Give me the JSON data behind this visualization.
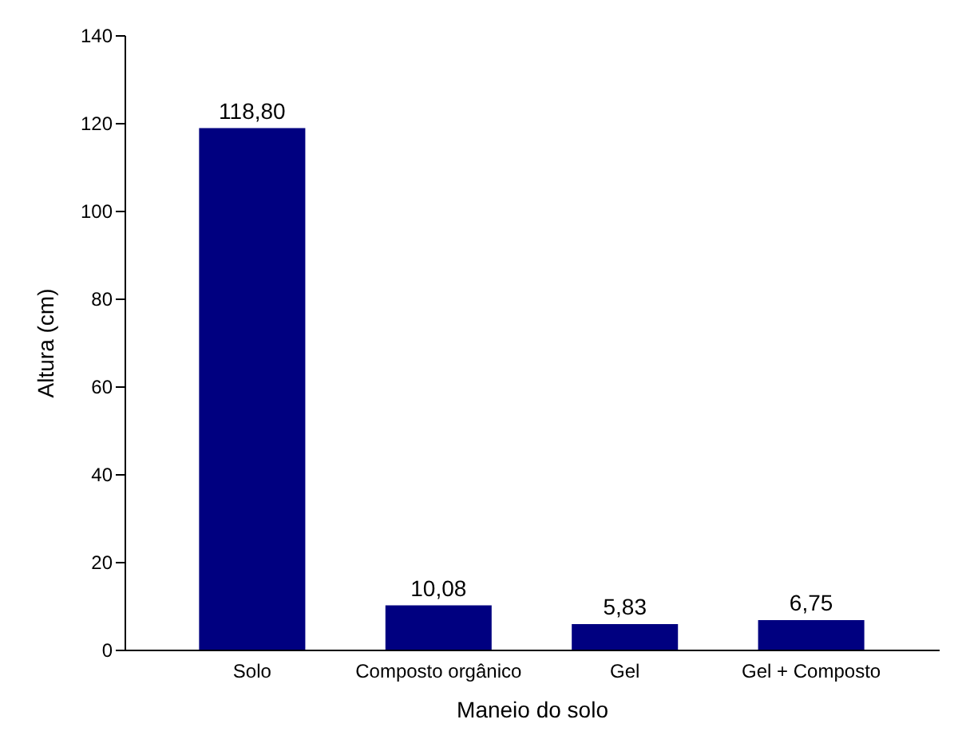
{
  "chart_data": {
    "type": "bar",
    "xlabel": "Maneio do solo",
    "ylabel": "Altura (cm)",
    "categories": [
      "Solo",
      "Composto orgânico",
      "Gel",
      "Gel + Composto"
    ],
    "values": [
      118.8,
      10.08,
      5.83,
      6.75
    ],
    "value_labels": [
      "118,80",
      "10,08",
      "5,83",
      "6,75"
    ],
    "color": "#000080",
    "ylim": [
      0,
      140
    ],
    "yticks": [
      0,
      20,
      40,
      60,
      80,
      100,
      120,
      140
    ],
    "grid": false
  }
}
